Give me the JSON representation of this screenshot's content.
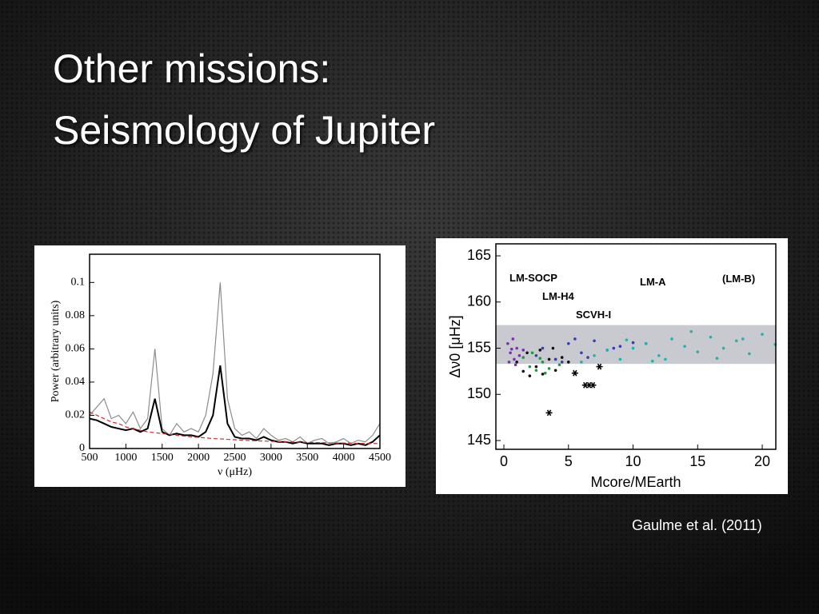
{
  "slide": {
    "title": [
      "Other missions:",
      "Seismology of Jupiter"
    ],
    "citation": "Gaulme et al. (2011)"
  },
  "chart_data": [
    {
      "type": "line",
      "xlabel": "ν (μHz)",
      "ylabel": "Power (arbitrary units)",
      "x": [
        500,
        600,
        700,
        800,
        900,
        1000,
        1100,
        1200,
        1300,
        1400,
        1500,
        1600,
        1700,
        1800,
        1900,
        2000,
        2100,
        2200,
        2300,
        2400,
        2500,
        2600,
        2700,
        2800,
        2900,
        3000,
        3100,
        3200,
        3300,
        3400,
        3500,
        3600,
        3700,
        3800,
        3900,
        4000,
        4100,
        4200,
        4300,
        4400,
        4500
      ],
      "series": [
        {
          "color": "#8c8c8c",
          "values": [
            0.02,
            0.025,
            0.03,
            0.018,
            0.02,
            0.015,
            0.022,
            0.012,
            0.018,
            0.06,
            0.012,
            0.008,
            0.015,
            0.01,
            0.012,
            0.01,
            0.02,
            0.045,
            0.1,
            0.03,
            0.012,
            0.008,
            0.01,
            0.006,
            0.012,
            0.008,
            0.005,
            0.006,
            0.004,
            0.007,
            0.003,
            0.005,
            0.006,
            0.003,
            0.004,
            0.006,
            0.003,
            0.005,
            0.004,
            0.008,
            0.015
          ]
        },
        {
          "color": "#000000",
          "values": [
            0.018,
            0.017,
            0.015,
            0.013,
            0.012,
            0.011,
            0.012,
            0.01,
            0.012,
            0.03,
            0.01,
            0.008,
            0.009,
            0.008,
            0.008,
            0.007,
            0.01,
            0.02,
            0.05,
            0.015,
            0.007,
            0.006,
            0.006,
            0.005,
            0.007,
            0.005,
            0.004,
            0.004,
            0.003,
            0.004,
            0.003,
            0.003,
            0.003,
            0.002,
            0.003,
            0.003,
            0.002,
            0.003,
            0.002,
            0.004,
            0.008
          ]
        },
        {
          "color": "#d62a2a",
          "dashed": true,
          "values": [
            0.022,
            0.02,
            0.018,
            0.016,
            0.015,
            0.013,
            0.012,
            0.011,
            0.01,
            0.0095,
            0.009,
            0.0085,
            0.008,
            0.0075,
            0.007,
            0.0067,
            0.0064,
            0.006,
            0.0058,
            0.0055,
            0.0053,
            0.005,
            0.0048,
            0.0046,
            0.0045,
            0.0043,
            0.0042,
            0.004,
            0.0039,
            0.0038,
            0.0037,
            0.0036,
            0.0035,
            0.0034,
            0.0033,
            0.0033,
            0.0032,
            0.0031,
            0.0031,
            0.003,
            0.003
          ]
        }
      ],
      "xlim": [
        500,
        4500
      ],
      "xticks": [
        500,
        1000,
        1500,
        2000,
        2500,
        3000,
        3500,
        4000,
        4500
      ],
      "ylim": [
        0,
        0.117
      ],
      "yticks": [
        0,
        0.02,
        0.04,
        0.06,
        0.08,
        0.1
      ]
    },
    {
      "type": "scatter",
      "xlabel": "Mcore/MEarth",
      "ylabel": "Δν0 [μHz]",
      "band": [
        153.3,
        157.5
      ],
      "series": [
        {
          "name": "LM-SOCP",
          "color": "#7b2fb5",
          "x": [
            0.3,
            0.5,
            0.8,
            1.0,
            1.2,
            0.4,
            0.7,
            1.5,
            0.9,
            0.6
          ],
          "values": [
            155.5,
            154.5,
            153.8,
            155,
            154.2,
            153.5,
            156,
            154.8,
            153.2,
            154.9
          ]
        },
        {
          "name": "LM-H4",
          "color": "#1a9e3a",
          "x": [
            1.5,
            2,
            2.5,
            3,
            3.5,
            4,
            2.2,
            3.2,
            2.8,
            4.3
          ],
          "values": [
            154,
            153,
            152.6,
            153.5,
            152.8,
            153.8,
            154.5,
            152.3,
            153.9,
            153.2
          ]
        },
        {
          "name": "SCVH-I",
          "color": "#111111",
          "x": [
            1,
            1.5,
            2,
            2.5,
            3,
            3.5,
            4,
            4.5,
            5,
            1.8,
            2.8,
            3.8
          ],
          "values": [
            153.5,
            152.5,
            152,
            153,
            152.2,
            153.8,
            152.6,
            154,
            153.5,
            154.5,
            154.8,
            155
          ]
        },
        {
          "name": "LM-A",
          "color": "#2f3fb5",
          "x": [
            2.5,
            3,
            4,
            5,
            6,
            7,
            8,
            9,
            10,
            11,
            4.5,
            6.5,
            8.5,
            5.5
          ],
          "values": [
            154.2,
            155,
            153.8,
            155.5,
            154.5,
            155.8,
            154.8,
            155.2,
            155.6,
            155.5,
            153.5,
            154,
            155,
            156
          ]
        },
        {
          "name": "(LM-B)",
          "color": "#22b3a8",
          "x": [
            6,
            7,
            8,
            9,
            10,
            11,
            12,
            13,
            14,
            15,
            16,
            17,
            18,
            19,
            20,
            21,
            12.5,
            14.5,
            16.5,
            18.5,
            9.5,
            11.5
          ],
          "values": [
            153.5,
            154.2,
            154.8,
            153.8,
            155,
            155.5,
            154.2,
            156,
            155.2,
            154.6,
            156.2,
            155,
            155.8,
            154.4,
            156.5,
            155.4,
            153.8,
            156.8,
            153.9,
            156,
            155.9,
            153.6
          ]
        },
        {
          "color": "#000000",
          "marker": "star",
          "x": [
            3.5,
            5.5,
            6.3,
            6.6,
            6.9,
            7.4
          ],
          "values": [
            148,
            152.3,
            151,
            151,
            151,
            153
          ]
        }
      ],
      "xlim": [
        -0.62,
        21.05
      ],
      "xticks": [
        0,
        5,
        10,
        15,
        20
      ],
      "ylim": [
        144.05,
        166.3
      ],
      "yticks": [
        145,
        150,
        155,
        160,
        165
      ]
    }
  ]
}
